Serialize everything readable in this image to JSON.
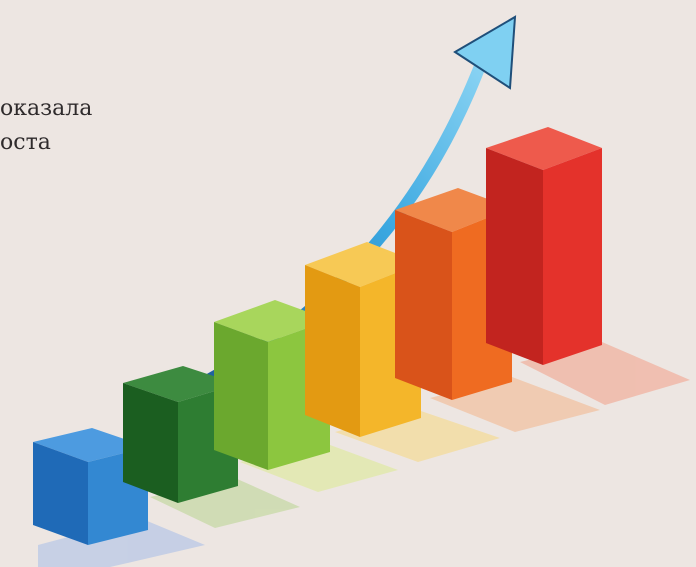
{
  "caption": {
    "line1": "оказала",
    "line2": "оста"
  },
  "illustration": {
    "bar_count": 6,
    "bar_colors": [
      "#2f7fc6",
      "#2e7d32",
      "#8cc63f",
      "#f4b62a",
      "#ef6b21",
      "#e4322b"
    ],
    "arrow_color": "#3aa7e0"
  }
}
